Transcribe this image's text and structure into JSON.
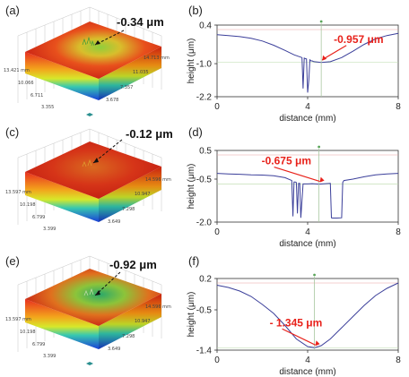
{
  "panels_3d": [
    {
      "letter": "(a)",
      "annotation": "-0.34 μm",
      "left_ticks": [
        "13.421 mm",
        "10.066",
        "6.711",
        "3.355"
      ],
      "right_ticks": [
        "14.713 mm",
        "11.035",
        "7.357",
        "3.678"
      ]
    },
    {
      "letter": "(c)",
      "annotation": "-0.12 μm",
      "left_ticks": [
        "13.597 mm",
        "10.198",
        "6.799",
        "3.399"
      ],
      "right_ticks": [
        "14.596 mm",
        "10.947",
        "7.298",
        "3.649"
      ]
    },
    {
      "letter": "(e)",
      "annotation": "-0.92 μm",
      "left_ticks": [
        "13.597 mm",
        "10.198",
        "6.799",
        "3.399"
      ],
      "right_ticks": [
        "14.596 mm",
        "10.947",
        "7.298",
        "3.649"
      ]
    }
  ],
  "chart_data": [
    {
      "type": "line",
      "letter": "(b)",
      "xlabel": "distance (mm)",
      "ylabel": "height (μm)",
      "xlim": [
        0,
        8
      ],
      "ylim": [
        -2.2,
        0.4
      ],
      "xticks": [
        "0",
        "4",
        "8"
      ],
      "yticks": [
        "0.4",
        "-1.0",
        "-2.2"
      ],
      "annotation": "-0.957 μm",
      "marker_x": 4.6,
      "marker_y": -0.957,
      "x": [
        0,
        0.5,
        1,
        1.5,
        2,
        2.5,
        3,
        3.4,
        3.75,
        3.8,
        3.85,
        3.9,
        3.95,
        4.0,
        4.05,
        4.1,
        4.15,
        4.2,
        4.25,
        4.3,
        4.6,
        5,
        5.5,
        6,
        6.5,
        7,
        7.5,
        8
      ],
      "y": [
        0.05,
        0.02,
        -0.02,
        -0.08,
        -0.18,
        -0.33,
        -0.52,
        -0.68,
        -0.78,
        -1.9,
        -0.8,
        -0.82,
        -0.83,
        -2.05,
        -1.6,
        -0.86,
        -0.9,
        -0.9,
        -0.92,
        -0.93,
        -0.957,
        -0.93,
        -0.78,
        -0.55,
        -0.3,
        -0.1,
        0.02,
        0.1
      ]
    },
    {
      "type": "line",
      "letter": "(d)",
      "xlabel": "distance (mm)",
      "ylabel": "height (μm)",
      "xlim": [
        0,
        8
      ],
      "ylim": [
        -2.0,
        0.5
      ],
      "xticks": [
        "0",
        "4",
        "8"
      ],
      "yticks": [
        "0.5",
        "-0.5",
        "-2.0"
      ],
      "annotation": "-0.675 μm",
      "marker_x": 4.5,
      "marker_y": -0.675,
      "x": [
        0,
        0.5,
        1,
        1.5,
        2,
        2.5,
        3,
        3.3,
        3.35,
        3.4,
        3.45,
        3.5,
        3.55,
        3.6,
        3.65,
        3.7,
        3.8,
        4,
        4.2,
        4.5,
        4.8,
        5.0,
        5.05,
        5.1,
        5.3,
        5.5,
        5.55,
        5.6,
        6,
        6.5,
        7,
        7.5,
        8
      ],
      "y": [
        -0.3,
        -0.32,
        -0.33,
        -0.35,
        -0.36,
        -0.38,
        -0.45,
        -0.55,
        -1.8,
        -0.6,
        -0.6,
        -0.62,
        -1.7,
        -0.65,
        -0.65,
        -1.85,
        -0.67,
        -0.67,
        -0.66,
        -0.675,
        -0.66,
        -0.65,
        -1.85,
        -1.86,
        -1.86,
        -1.85,
        -0.62,
        -0.55,
        -0.5,
        -0.42,
        -0.35,
        -0.32,
        -0.3
      ]
    },
    {
      "type": "line",
      "letter": "(f)",
      "xlabel": "distance (mm)",
      "ylabel": "height (μm)",
      "xlim": [
        0,
        8
      ],
      "ylim": [
        -1.4,
        0.2
      ],
      "xticks": [
        "0",
        "4",
        "8"
      ],
      "yticks": [
        "0.2",
        "-0.5",
        "-1.4"
      ],
      "annotation": "- 1.345 μm",
      "marker_x": 4.3,
      "marker_y": -1.345,
      "x": [
        0,
        0.5,
        1,
        1.5,
        2,
        2.5,
        3,
        3.5,
        4,
        4.3,
        4.6,
        5,
        5.5,
        6,
        6.5,
        7,
        7.5,
        8
      ],
      "y": [
        0.05,
        0.0,
        -0.08,
        -0.2,
        -0.38,
        -0.58,
        -0.85,
        -1.15,
        -1.32,
        -1.345,
        -1.3,
        -1.15,
        -0.9,
        -0.65,
        -0.4,
        -0.18,
        -0.02,
        0.1
      ]
    }
  ]
}
